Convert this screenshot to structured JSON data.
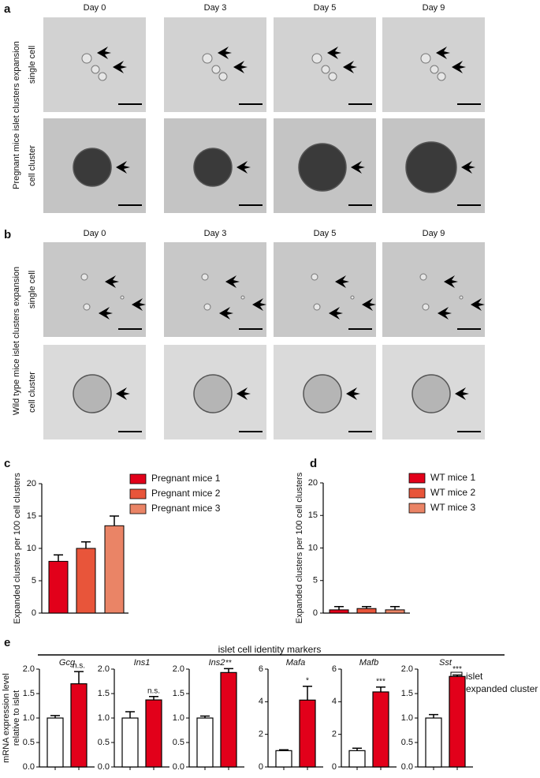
{
  "figure": {
    "panels": [
      {
        "label": "a",
        "columns": [
          "Day 0",
          "Day 3",
          "Day 5",
          "Day 9"
        ],
        "group": "Pregnant mice islet clusters expansion",
        "rows": [
          "single cell",
          "cell cluster"
        ]
      },
      {
        "label": "b",
        "columns": [
          "Day 0",
          "Day 3",
          "Day 5",
          "Day 9"
        ],
        "group": "Wild type mice islet clusters expansion",
        "rows": [
          "single cell",
          "cell cluster"
        ]
      }
    ]
  },
  "chart_data": [
    {
      "type": "bar",
      "label": "c",
      "y_label": "Expanded clusters per 100 cell clusters",
      "ylim": [
        0,
        20
      ],
      "yticks": [
        0,
        5,
        10,
        15,
        20
      ],
      "series": [
        {
          "name": "Pregnant mice 1",
          "color": "#e2001a",
          "values": [
            8
          ],
          "errors": [
            1
          ]
        },
        {
          "name": "Pregnant mice 2",
          "color": "#e8553a",
          "values": [
            10
          ],
          "errors": [
            1
          ]
        },
        {
          "name": "Pregnant mice 3",
          "color": "#ea8466",
          "values": [
            13.5
          ],
          "errors": [
            1.5
          ]
        }
      ]
    },
    {
      "type": "bar",
      "label": "d",
      "y_label": "Expanded clusters per 100 cell clusters",
      "ylim": [
        0,
        20
      ],
      "yticks": [
        0,
        5,
        10,
        15,
        20
      ],
      "series": [
        {
          "name": "WT mice 1",
          "color": "#e2001a",
          "values": [
            0.5
          ],
          "errors": [
            0.5
          ]
        },
        {
          "name": "WT mice 2",
          "color": "#e8553a",
          "values": [
            0.7
          ],
          "errors": [
            0.3
          ]
        },
        {
          "name": "WT mice 3",
          "color": "#ea8466",
          "values": [
            0.5
          ],
          "errors": [
            0.5
          ]
        }
      ]
    },
    {
      "type": "bar-group",
      "label": "e",
      "title": "islet cell identity markers",
      "y_label": [
        "mRNA expression level",
        "relative to islet"
      ],
      "series": [
        {
          "name": "islet",
          "color": "#ffffff"
        },
        {
          "name": "expanded cluster",
          "color": "#e2001a"
        }
      ],
      "panels": [
        {
          "title": "Gcg",
          "values": [
            1.0,
            1.7
          ],
          "errors": [
            0.05,
            0.25
          ],
          "annotation": "n.s.",
          "ylim": [
            0,
            2
          ],
          "yticks": [
            {
              "value": 0,
              "label": "0.0"
            },
            0.5,
            {
              "value": 1,
              "label": "1.0"
            },
            1.5,
            {
              "value": 2,
              "label": "2.0"
            }
          ]
        },
        {
          "title": "Ins1",
          "values": [
            1.0,
            1.37
          ],
          "errors": [
            0.13,
            0.07
          ],
          "annotation": "n.s.",
          "ylim": [
            0,
            2
          ],
          "yticks": [
            {
              "value": 0,
              "label": "0.0"
            },
            0.5,
            {
              "value": 1,
              "label": "1.0"
            },
            1.5,
            {
              "value": 2,
              "label": "2.0"
            }
          ]
        },
        {
          "title": "Ins2",
          "values": [
            1.0,
            1.93
          ],
          "errors": [
            0.04,
            0.08
          ],
          "annotation": "**",
          "ylim": [
            0,
            2
          ],
          "yticks": [
            {
              "value": 0,
              "label": "0.0"
            },
            0.5,
            {
              "value": 1,
              "label": "1.0"
            },
            1.5,
            {
              "value": 2,
              "label": "2.0"
            }
          ]
        },
        {
          "title": "Mafa",
          "values": [
            1.0,
            4.1
          ],
          "errors": [
            0.05,
            0.85
          ],
          "annotation": "*",
          "ylim": [
            0,
            6
          ],
          "yticks": [
            0,
            2,
            4,
            6
          ]
        },
        {
          "title": "Mafb",
          "values": [
            1.0,
            4.6
          ],
          "errors": [
            0.15,
            0.3
          ],
          "annotation": "***",
          "ylim": [
            0,
            6
          ],
          "yticks": [
            0,
            2,
            4,
            6
          ]
        },
        {
          "title": "Sst",
          "values": [
            1.0,
            1.85
          ],
          "errors": [
            0.07,
            0.03
          ],
          "annotation": "***",
          "ylim": [
            0,
            2
          ],
          "yticks": [
            {
              "value": 0,
              "label": "0.0"
            },
            0.5,
            {
              "value": 1,
              "label": "1.0"
            },
            1.5,
            {
              "value": 2,
              "label": "2.0"
            }
          ]
        }
      ]
    }
  ]
}
